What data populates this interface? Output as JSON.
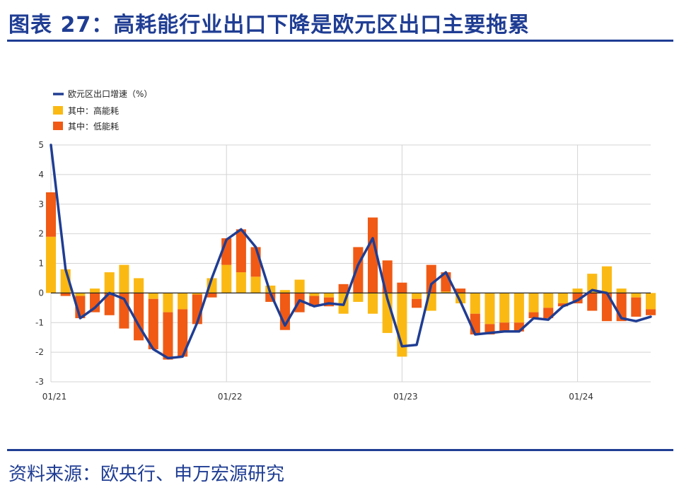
{
  "title": "图表 27：高耗能行业出口下降是欧元区出口主要拖累",
  "source": "资料来源：欧央行、申万宏源研究",
  "colors": {
    "line": "#1f3d93",
    "high": "#fbb913",
    "low": "#f05a14",
    "grid": "#d4d4d4",
    "brand": "#1f3d93"
  },
  "chart_data": {
    "type": "bar",
    "x_tick_labels": [
      "01/21",
      "01/22",
      "01/23",
      "01/24"
    ],
    "ylim": [
      -3,
      5
    ],
    "y_ticks": [
      5,
      4,
      3,
      2,
      1,
      0,
      -1,
      -2,
      -3
    ],
    "legend_position": "top-left",
    "series": [
      {
        "name": "欧元区出口增速（%）",
        "type": "line",
        "values": [
          5.0,
          0.8,
          -0.85,
          -0.5,
          0.0,
          -0.2,
          -1.1,
          -1.9,
          -2.2,
          -2.15,
          -1.0,
          0.5,
          1.8,
          2.15,
          1.55,
          0.0,
          -1.1,
          -0.25,
          -0.45,
          -0.35,
          -0.4,
          0.95,
          1.85,
          -0.2,
          -1.8,
          -1.75,
          0.3,
          0.7,
          -0.3,
          -1.4,
          -1.35,
          -1.3,
          -1.3,
          -0.85,
          -0.9,
          -0.45,
          -0.25,
          0.1,
          0.0,
          -0.85,
          -0.95,
          -0.8
        ]
      },
      {
        "name": "其中：高能耗",
        "type": "bar",
        "values": [
          1.9,
          0.8,
          -0.1,
          0.15,
          0.7,
          0.95,
          0.5,
          -0.2,
          -0.65,
          -0.55,
          -0.05,
          0.5,
          0.95,
          0.7,
          0.55,
          0.25,
          0.1,
          0.45,
          -0.1,
          -0.15,
          -0.7,
          -0.3,
          -0.7,
          -1.35,
          -2.15,
          -0.2,
          -0.6,
          0.05,
          -0.35,
          -0.7,
          -1.05,
          -1.0,
          -1.0,
          -0.65,
          -0.5,
          -0.35,
          0.15,
          0.65,
          0.9,
          0.15,
          -0.15,
          -0.55
        ]
      },
      {
        "name": "其中：低能耗",
        "type": "bar",
        "values": [
          1.5,
          -0.1,
          -0.75,
          -0.65,
          -0.75,
          -1.2,
          -1.6,
          -1.7,
          -1.6,
          -1.6,
          -1.0,
          -0.15,
          0.9,
          1.45,
          1.0,
          -0.3,
          -1.25,
          -0.65,
          -0.35,
          -0.3,
          0.3,
          1.55,
          2.55,
          1.1,
          0.35,
          -0.3,
          0.95,
          0.65,
          0.15,
          -0.7,
          -0.35,
          -0.3,
          -0.3,
          -0.2,
          -0.35,
          -0.1,
          -0.35,
          -0.6,
          -0.95,
          -0.95,
          -0.65,
          -0.2
        ]
      }
    ]
  }
}
